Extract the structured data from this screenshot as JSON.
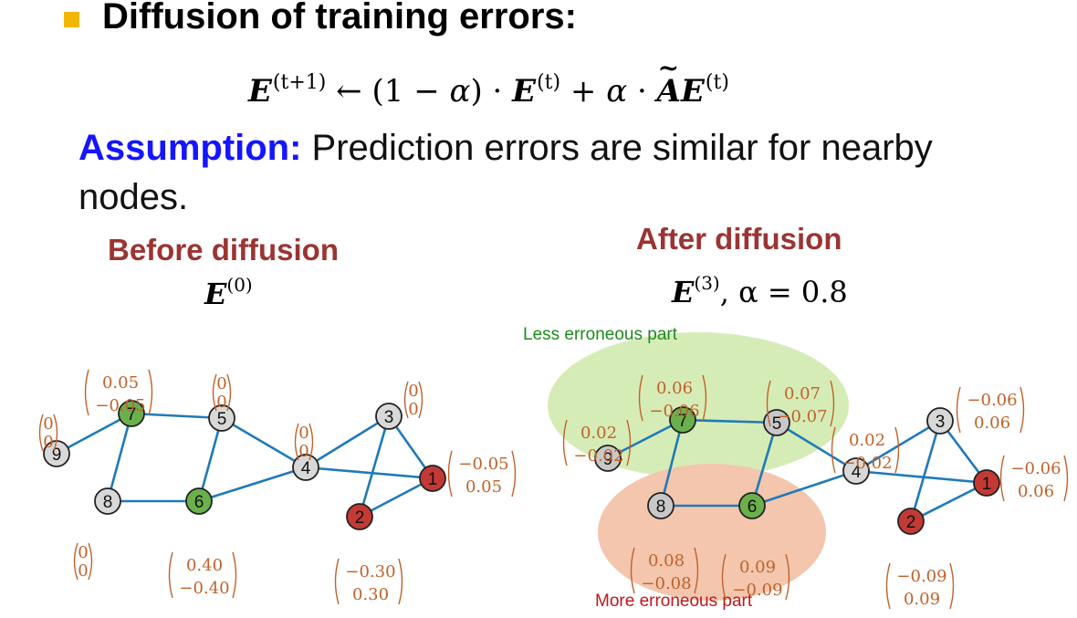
{
  "heading": "Diffusion of training errors:",
  "formula": {
    "lhs": "E",
    "lhs_sup": "(t+1)",
    "arrow": "←",
    "part1": "(1 − ",
    "alpha": "α",
    "part2": ") · ",
    "e1": "E",
    "e1_sup": "(t)",
    "plus": " + ",
    "alpha2": "α",
    "dot": " · ",
    "a": "A",
    "e2": "E",
    "e2_sup": "(t)"
  },
  "assumption": {
    "keyword": "Assumption:",
    "text": " Prediction errors are similar for nearby nodes."
  },
  "before": {
    "label": "Before diffusion",
    "eq_base": "E",
    "eq_sup": "(0)",
    "nodes": [
      {
        "id": "9",
        "color": "#d8d8d8",
        "top": "0",
        "bottom": "0"
      },
      {
        "id": "7",
        "color": "#6ab04c",
        "top": "0.05",
        "bottom": "−0.05"
      },
      {
        "id": "5",
        "color": "#d8d8d8",
        "top": "0",
        "bottom": "0"
      },
      {
        "id": "8",
        "color": "#d8d8d8",
        "top": "0",
        "bottom": "0"
      },
      {
        "id": "6",
        "color": "#6ab04c",
        "top": "0.40",
        "bottom": "−0.40"
      },
      {
        "id": "4",
        "color": "#d8d8d8",
        "top": "0",
        "bottom": "0"
      },
      {
        "id": "3",
        "color": "#d8d8d8",
        "top": "0",
        "bottom": "0"
      },
      {
        "id": "1",
        "color": "#c33a35",
        "top": "−0.05",
        "bottom": "0.05"
      },
      {
        "id": "2",
        "color": "#c33a35",
        "top": "−0.30",
        "bottom": "0.30"
      }
    ]
  },
  "after": {
    "label": "After diffusion",
    "eq_base": "E",
    "eq_sup": "(3)",
    "eq_rest": ", α = 0.8",
    "less_label": "Less erroneous part",
    "more_label": "More erroneous part",
    "nodes": [
      {
        "id": "9",
        "color": "#c8c8c8",
        "top": "0.02",
        "bottom": "−0.02"
      },
      {
        "id": "7",
        "color": "#6ab04c",
        "top": "0.06",
        "bottom": "−0.06"
      },
      {
        "id": "5",
        "color": "#c8c8c8",
        "top": "0.07",
        "bottom": "−0.07"
      },
      {
        "id": "8",
        "color": "#c8c8c8",
        "top": "0.08",
        "bottom": "−0.08"
      },
      {
        "id": "6",
        "color": "#6ab04c",
        "top": "0.09",
        "bottom": "−0.09"
      },
      {
        "id": "4",
        "color": "#d8d8d8",
        "top": "0.02",
        "bottom": "−0.02"
      },
      {
        "id": "3",
        "color": "#d8d8d8",
        "top": "−0.06",
        "bottom": "0.06"
      },
      {
        "id": "1",
        "color": "#c33a35",
        "top": "−0.06",
        "bottom": "0.06"
      },
      {
        "id": "2",
        "color": "#c33a35",
        "top": "−0.09",
        "bottom": "0.09"
      }
    ]
  },
  "colors": {
    "edge": "#1f7ab8",
    "vector_text": "#c0622b",
    "section_title": "#9b3432",
    "assumption_keyword": "#1515ff",
    "less_region": "#d6ecb6",
    "more_region": "#f3c6ad",
    "less_label": "#1d8a1d",
    "more_label": "#c0161b"
  }
}
